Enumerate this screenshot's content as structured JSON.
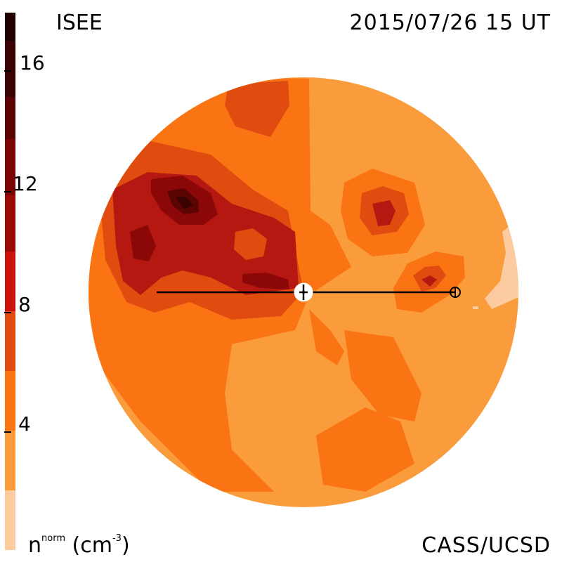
{
  "header": {
    "title_left": "ISEE",
    "title_right": "2015/07/26 15 UT"
  },
  "footer": {
    "units_prefix": "n",
    "units_superscript": "norm",
    "units_suffix": " (cm",
    "units_exponent": "-3",
    "units_close": ")",
    "credit": "CASS/UCSD"
  },
  "colorbar": {
    "ticks": [
      "16",
      "12",
      "8",
      "4"
    ],
    "colors": [
      "#fccca0",
      "#fb9c3c",
      "#fa7414",
      "#e84c0c",
      "#c8140c",
      "#8c0808",
      "#5a0404",
      "#3a0202",
      "#1e0000"
    ]
  },
  "map": {
    "colors": {
      "level1": "#fb9c3c",
      "level2": "#fa7414",
      "level3": "#e04c10",
      "level4": "#b41810",
      "level5": "#8c0808",
      "level6": "#5a0404",
      "level0": "#fccca0"
    }
  }
}
